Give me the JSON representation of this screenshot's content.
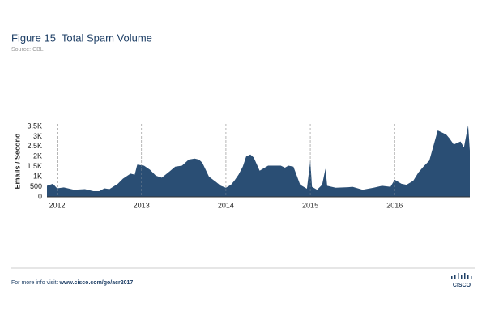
{
  "chart_data": {
    "type": "area",
    "title": "Figure 15  Total Spam Volume",
    "source": "Source: CBL",
    "ylabel": "Emails / Second",
    "color": "#2a4e74",
    "x": [
      2011.88,
      2011.95,
      2012.0,
      2012.08,
      2012.2,
      2012.33,
      2012.43,
      2012.5,
      2012.56,
      2012.62,
      2012.72,
      2012.78,
      2012.87,
      2012.92,
      2012.95,
      2013.03,
      2013.1,
      2013.17,
      2013.24,
      2013.33,
      2013.4,
      2013.48,
      2013.56,
      2013.63,
      2013.68,
      2013.72,
      2013.8,
      2013.88,
      2013.94,
      2014.0,
      2014.06,
      2014.1,
      2014.15,
      2014.2,
      2014.24,
      2014.29,
      2014.33,
      2014.4,
      2014.5,
      2014.6,
      2014.65,
      2014.7,
      2014.74,
      2014.8,
      2014.88,
      2014.96,
      2015.0,
      2015.02,
      2015.08,
      2015.14,
      2015.18,
      2015.2,
      2015.3,
      2015.45,
      2015.5,
      2015.62,
      2015.75,
      2015.85,
      2015.95,
      2016.0,
      2016.08,
      2016.14,
      2016.22,
      2016.28,
      2016.34,
      2016.41,
      2016.51,
      2016.61,
      2016.65,
      2016.7,
      2016.78,
      2016.82,
      2016.87,
      2016.89
    ],
    "values": [
      550,
      650,
      420,
      470,
      350,
      380,
      280,
      280,
      420,
      380,
      650,
      900,
      1150,
      1100,
      1600,
      1550,
      1350,
      1050,
      950,
      1250,
      1500,
      1550,
      1850,
      1900,
      1850,
      1700,
      1000,
      750,
      550,
      450,
      600,
      800,
      1100,
      1500,
      2000,
      2100,
      1950,
      1300,
      1550,
      1550,
      1550,
      1450,
      1550,
      1500,
      600,
      400,
      1800,
      500,
      350,
      600,
      1400,
      550,
      450,
      480,
      500,
      350,
      450,
      550,
      500,
      850,
      650,
      600,
      800,
      1200,
      1500,
      1800,
      3300,
      3100,
      2900,
      2600,
      2750,
      2450,
      3550,
      2300
    ],
    "xlim": [
      2011.88,
      2016.89
    ],
    "ylim": [
      0,
      3600
    ],
    "xticks": [
      2012,
      2013,
      2014,
      2015,
      2016
    ],
    "yticks": [
      0,
      500,
      {
        "value": 1000,
        "label": "1K"
      },
      {
        "value": 1500,
        "label": "1.5K"
      },
      {
        "value": 2000,
        "label": "2K"
      },
      {
        "value": 2500,
        "label": "2.5K"
      },
      {
        "value": 3000,
        "label": "3K"
      },
      {
        "value": 3500,
        "label": "3.5K"
      }
    ],
    "grid": true
  },
  "footer": {
    "text": "For more info visit:",
    "link": "www.cisco.com/go/acr2017",
    "logo": "CISCO"
  }
}
